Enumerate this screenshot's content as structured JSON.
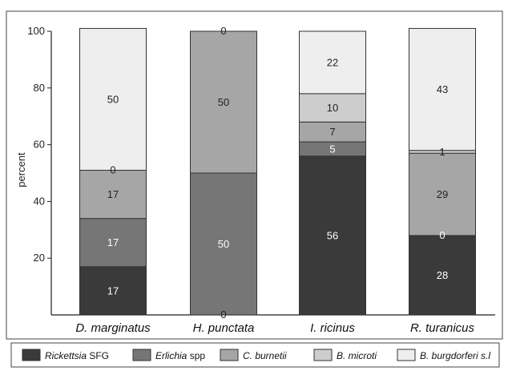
{
  "chart_data": {
    "type": "bar",
    "stacked": true,
    "ylabel": "percent",
    "xlabel": "",
    "ylim": [
      0,
      100
    ],
    "yticks": [
      20,
      40,
      60,
      80,
      100
    ],
    "categories": [
      "D. marginatus",
      "H. punctata",
      "I. ricinus",
      "R. turanicus"
    ],
    "series": [
      {
        "name": "Rickettsia SFG",
        "values": [
          17,
          0,
          56,
          28
        ]
      },
      {
        "name": "Erlichia spp",
        "values": [
          17,
          50,
          5,
          0
        ]
      },
      {
        "name": "C. burnetii",
        "values": [
          17,
          50,
          7,
          29
        ]
      },
      {
        "name": "B. microti",
        "values": [
          0,
          0,
          10,
          1
        ]
      },
      {
        "name": "B. burgdorferi s.l",
        "values": [
          50,
          0,
          22,
          43
        ]
      }
    ],
    "data_labels": [
      [
        "17",
        "17",
        "17",
        "0",
        "50"
      ],
      [
        "0",
        "50",
        "50",
        "",
        "0"
      ],
      [
        "56",
        "5",
        "7",
        "10",
        "22"
      ],
      [
        "28",
        "0",
        "29",
        "1",
        "43"
      ]
    ],
    "legend": {
      "placement": "bottom",
      "entries": [
        {
          "italic": "Rickettsia",
          "rest": " SFG"
        },
        {
          "italic": "Erlichia",
          "rest": " spp"
        },
        {
          "italic": "C. burnetii",
          "rest": ""
        },
        {
          "italic": "B. microti",
          "rest": ""
        },
        {
          "italic": "B. burgdorferi s.l",
          "rest": ""
        }
      ]
    },
    "colors": [
      "#3a3a3a",
      "#767676",
      "#a6a6a6",
      "#cdcdcd",
      "#eeeeee"
    ],
    "label_colors": [
      "#ffffff",
      "#ffffff",
      "#222222",
      "#222222",
      "#222222"
    ],
    "grid": false
  }
}
